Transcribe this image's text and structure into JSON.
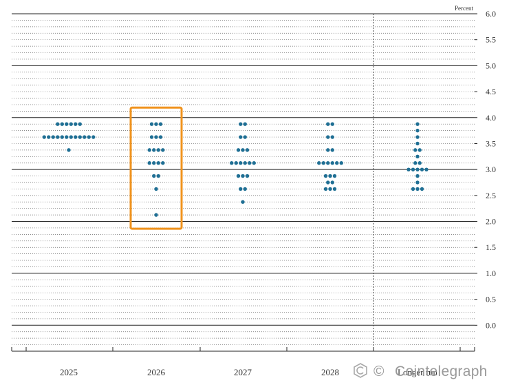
{
  "chart_data": {
    "type": "scatter",
    "ylabel": "Percent",
    "ylim": [
      -0.5,
      6.0
    ],
    "y_ticks": [
      "6.0",
      "5.5",
      "5.0",
      "4.5",
      "4.0",
      "3.5",
      "3.0",
      "2.5",
      "2.0",
      "1.5",
      "1.0",
      "0.5",
      "0.0"
    ],
    "categories": [
      "2025",
      "2026",
      "2027",
      "2028",
      "Longer run"
    ],
    "series": [
      {
        "category": "2025",
        "dots": [
          {
            "y": 3.875,
            "count": 6
          },
          {
            "y": 3.625,
            "count": 12
          },
          {
            "y": 3.375,
            "count": 1
          }
        ]
      },
      {
        "category": "2026",
        "dots": [
          {
            "y": 3.875,
            "count": 3
          },
          {
            "y": 3.625,
            "count": 3
          },
          {
            "y": 3.375,
            "count": 4
          },
          {
            "y": 3.125,
            "count": 4
          },
          {
            "y": 2.875,
            "count": 2
          },
          {
            "y": 2.625,
            "count": 1
          },
          {
            "y": 2.125,
            "count": 1
          }
        ]
      },
      {
        "category": "2027",
        "dots": [
          {
            "y": 3.875,
            "count": 2
          },
          {
            "y": 3.625,
            "count": 2
          },
          {
            "y": 3.375,
            "count": 3
          },
          {
            "y": 3.125,
            "count": 6
          },
          {
            "y": 2.875,
            "count": 3
          },
          {
            "y": 2.625,
            "count": 2
          },
          {
            "y": 2.375,
            "count": 1
          }
        ]
      },
      {
        "category": "2028",
        "dots": [
          {
            "y": 3.875,
            "count": 2
          },
          {
            "y": 3.625,
            "count": 2
          },
          {
            "y": 3.375,
            "count": 2
          },
          {
            "y": 3.125,
            "count": 6
          },
          {
            "y": 2.875,
            "count": 3
          },
          {
            "y": 2.75,
            "count": 2
          },
          {
            "y": 2.625,
            "count": 3
          }
        ]
      },
      {
        "category": "Longer run",
        "dots": [
          {
            "y": 3.875,
            "count": 1
          },
          {
            "y": 3.75,
            "count": 1
          },
          {
            "y": 3.625,
            "count": 1
          },
          {
            "y": 3.5,
            "count": 1
          },
          {
            "y": 3.375,
            "count": 2
          },
          {
            "y": 3.25,
            "count": 1
          },
          {
            "y": 3.125,
            "count": 2
          },
          {
            "y": 3.0,
            "count": 5
          },
          {
            "y": 2.875,
            "count": 1
          },
          {
            "y": 2.75,
            "count": 1
          },
          {
            "y": 2.625,
            "count": 3
          }
        ]
      }
    ],
    "highlight_category": "2026",
    "grid": true,
    "dot_color": "#1f6f94",
    "highlight_color": "#f0931e"
  },
  "watermark": {
    "text": "Cointelegraph"
  }
}
